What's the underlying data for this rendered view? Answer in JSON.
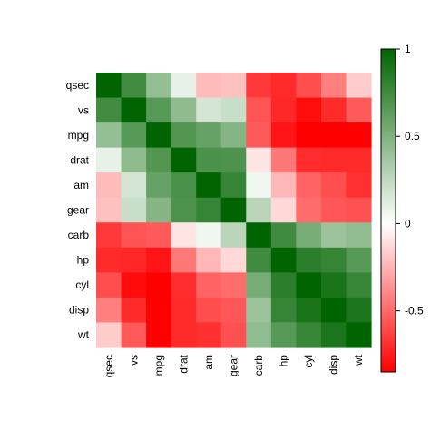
{
  "chart_data": {
    "type": "heatmap",
    "title": "",
    "xlabel": "",
    "ylabel": "",
    "rows": [
      "qsec",
      "vs",
      "mpg",
      "drat",
      "am",
      "gear",
      "carb",
      "hp",
      "cyl",
      "disp",
      "wt"
    ],
    "cols": [
      "qsec",
      "vs",
      "mpg",
      "drat",
      "am",
      "gear",
      "carb",
      "hp",
      "cyl",
      "disp",
      "wt"
    ],
    "values": [
      [
        1.0,
        0.74,
        0.42,
        0.09,
        -0.23,
        -0.21,
        -0.66,
        -0.71,
        -0.59,
        -0.43,
        -0.17
      ],
      [
        0.74,
        1.0,
        0.66,
        0.44,
        0.17,
        0.21,
        -0.57,
        -0.72,
        -0.81,
        -0.71,
        -0.55
      ],
      [
        0.42,
        0.66,
        1.0,
        0.68,
        0.6,
        0.48,
        -0.55,
        -0.78,
        -0.85,
        -0.85,
        -0.87
      ],
      [
        0.09,
        0.44,
        0.68,
        1.0,
        0.71,
        0.7,
        -0.09,
        -0.45,
        -0.7,
        -0.71,
        -0.71
      ],
      [
        -0.23,
        0.17,
        0.6,
        0.71,
        1.0,
        0.79,
        0.06,
        -0.24,
        -0.52,
        -0.59,
        -0.69
      ],
      [
        -0.21,
        0.21,
        0.48,
        0.7,
        0.79,
        1.0,
        0.27,
        -0.13,
        -0.49,
        -0.56,
        -0.58
      ],
      [
        -0.66,
        -0.57,
        -0.55,
        -0.09,
        0.06,
        0.27,
        1.0,
        0.75,
        0.53,
        0.39,
        0.43
      ],
      [
        -0.71,
        -0.72,
        -0.78,
        -0.45,
        -0.24,
        -0.13,
        0.75,
        1.0,
        0.83,
        0.79,
        0.66
      ],
      [
        -0.59,
        -0.81,
        -0.85,
        -0.7,
        -0.52,
        -0.49,
        0.53,
        0.83,
        1.0,
        0.9,
        0.78
      ],
      [
        -0.43,
        -0.71,
        -0.85,
        -0.71,
        -0.59,
        -0.56,
        0.39,
        0.79,
        0.9,
        1.0,
        0.89
      ],
      [
        -0.17,
        -0.55,
        -0.87,
        -0.71,
        -0.69,
        -0.58,
        0.43,
        0.66,
        0.78,
        0.89,
        1.0
      ]
    ],
    "colorbar": {
      "range": [
        -0.85,
        1
      ],
      "ticks": [
        -0.5,
        0,
        0.5,
        1
      ],
      "tick_labels": [
        "-0.5",
        "0",
        "0.5",
        "1"
      ],
      "colors": {
        "low": "#ff0000",
        "mid": "#ffffff",
        "high": "#006400"
      }
    },
    "legend_placement": "right",
    "grid": false
  }
}
